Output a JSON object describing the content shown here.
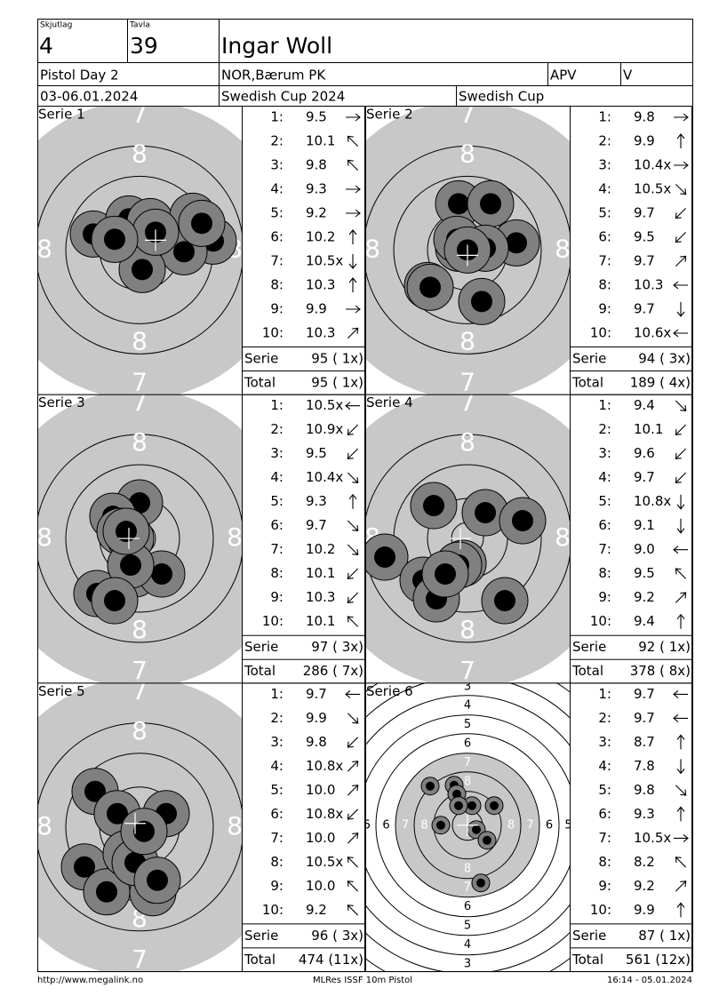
{
  "header": {
    "squad_label": "Skjutlag",
    "squad": "4",
    "lane_label": "Tavla",
    "lane": "39",
    "name": "Ingar Woll",
    "event": "Pistol Day 2",
    "club": "NOR,Bærum PK",
    "class": "APV",
    "class2": "V",
    "date": "03-06.01.2024",
    "competition": "Swedish Cup 2024",
    "cup": "Swedish Cup"
  },
  "shot_numbers": [
    "1:",
    "2:",
    "3:",
    "4:",
    "5:",
    "6:",
    "7:",
    "8:",
    "9:",
    "10:"
  ],
  "series": [
    {
      "title": "Serie 1",
      "shots": [
        "9.5",
        "10.1",
        "9.8",
        "9.3",
        "9.2",
        "10.2",
        "10.5x",
        "10.3",
        "9.9",
        "10.3"
      ],
      "serie_label": "Serie",
      "serie_score": "95 ( 1x)",
      "total_label": "Total",
      "total_score": "95 ( 1x)",
      "ring_labels": [
        "7",
        "8",
        "8",
        "8",
        "8",
        "7"
      ]
    },
    {
      "title": "Serie 2",
      "shots": [
        "9.8",
        "9.9",
        "10.4x",
        "10.5x",
        "9.7",
        "9.5",
        "9.7",
        "10.3",
        "9.7",
        "10.6x"
      ],
      "serie_label": "Serie",
      "serie_score": "94 ( 3x)",
      "total_label": "Total",
      "total_score": "189 ( 4x)",
      "ring_labels": [
        "7",
        "8",
        "8",
        "8",
        "8",
        "7"
      ]
    },
    {
      "title": "Serie 3",
      "shots": [
        "10.5x",
        "10.9x",
        "9.5",
        "10.4x",
        "9.3",
        "9.7",
        "10.2",
        "10.1",
        "10.3",
        "10.1"
      ],
      "serie_label": "Serie",
      "serie_score": "97 ( 3x)",
      "total_label": "Total",
      "total_score": "286 ( 7x)",
      "ring_labels": [
        "7",
        "8",
        "8",
        "8",
        "8",
        "7"
      ]
    },
    {
      "title": "Serie 4",
      "shots": [
        "9.4",
        "10.1",
        "9.6",
        "9.7",
        "10.8x",
        "9.1",
        "9.0",
        "9.5",
        "9.2",
        "9.4"
      ],
      "serie_label": "Serie",
      "serie_score": "92 ( 1x)",
      "total_label": "Total",
      "total_score": "378 ( 8x)",
      "ring_labels": [
        "7",
        "8",
        "8",
        "8",
        "8",
        "7"
      ]
    },
    {
      "title": "Serie 5",
      "shots": [
        "9.7",
        "9.9",
        "9.8",
        "10.8x",
        "10.0",
        "10.8x",
        "10.0",
        "10.5x",
        "10.0",
        "9.2"
      ],
      "serie_label": "Serie",
      "serie_score": "96 ( 3x)",
      "total_label": "Total",
      "total_score": "474 (11x)",
      "ring_labels": [
        "7",
        "8",
        "8",
        "8",
        "8",
        "7"
      ]
    },
    {
      "title": "Serie 6",
      "shots": [
        "9.7",
        "9.7",
        "8.7",
        "7.8",
        "9.8",
        "9.3",
        "10.5x",
        "8.2",
        "9.2",
        "9.9"
      ],
      "serie_label": "Serie",
      "serie_score": "87 ( 1x)",
      "total_label": "Total",
      "total_score": "561 (12x)",
      "scale_labels": {
        "top": [
          "3",
          "4",
          "5",
          "6",
          "7",
          "8"
        ],
        "bottom": [
          "8",
          "7",
          "6",
          "5",
          "4",
          "3"
        ],
        "left": [
          "5",
          "6",
          "7",
          "8"
        ],
        "right": [
          "8",
          "7",
          "6",
          "5"
        ]
      }
    }
  ],
  "footer": {
    "left": "http://www.megalink.no",
    "center": "MLRes ISSF 10m Pistol",
    "right": "16:14 - 05.01.2024"
  }
}
